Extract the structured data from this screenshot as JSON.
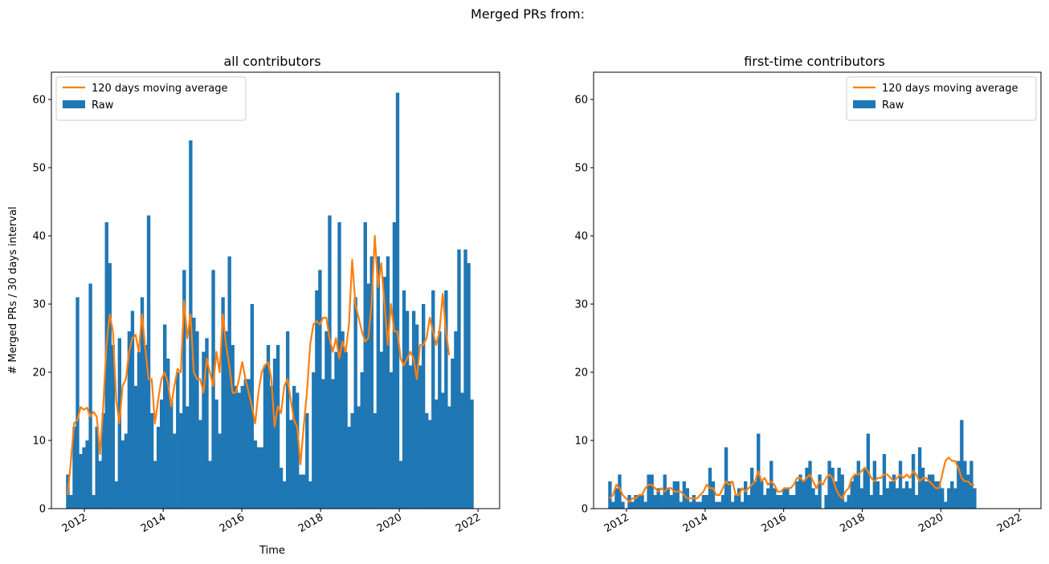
{
  "figure": {
    "suptitle": "Merged PRs from:"
  },
  "colors": {
    "raw": "#1f77b4",
    "avg": "#ff7f0e",
    "axis": "#000000"
  },
  "chart_data": [
    {
      "type": "bar",
      "title": "all contributors",
      "xlabel": "Time",
      "ylabel": "# Merged PRs / 30 days interval",
      "x_start": "2011-07-15",
      "bar_width_days": 30,
      "xlim": [
        "2011-03-01",
        "2022-07-20"
      ],
      "ylim": [
        0,
        64
      ],
      "x_ticks": [
        "2012",
        "2014",
        "2016",
        "2018",
        "2020",
        "2022"
      ],
      "y_ticks": [
        0,
        10,
        20,
        30,
        40,
        50,
        60
      ],
      "legend": {
        "position": "top-left",
        "entries": [
          "120 days moving average",
          "Raw"
        ]
      },
      "series": [
        {
          "name": "Raw",
          "kind": "bar",
          "values": [
            5,
            2,
            12,
            31,
            8,
            9,
            10,
            33,
            2,
            12,
            7,
            14,
            42,
            36,
            24,
            4,
            25,
            10,
            11,
            26,
            29,
            18,
            23,
            31,
            24,
            43,
            14,
            7,
            12,
            16,
            27,
            22,
            16,
            11,
            20,
            14,
            35,
            15,
            54,
            28,
            26,
            13,
            23,
            25,
            7,
            35,
            16,
            11,
            31,
            26,
            37,
            24,
            18,
            17,
            18,
            19,
            19,
            30,
            10,
            9,
            9,
            21,
            24,
            18,
            22,
            24,
            6,
            4,
            26,
            13,
            18,
            17,
            5,
            5,
            14,
            4,
            20,
            32,
            35,
            19,
            26,
            43,
            19,
            23,
            42,
            26,
            23,
            12,
            14,
            31,
            15,
            20,
            42,
            33,
            37,
            14,
            37,
            23,
            34,
            37,
            20,
            42,
            61,
            7,
            32,
            29,
            21,
            29,
            27,
            21,
            30,
            14,
            13,
            32,
            16,
            26,
            17,
            32,
            15,
            22,
            26,
            38,
            17,
            38,
            36,
            16
          ]
        },
        {
          "name": "120 days moving average",
          "kind": "line",
          "values": [
            2,
            7,
            12.5,
            13,
            14.9,
            14.5,
            14.8,
            13.5,
            14.2,
            13.5,
            8,
            15,
            24,
            28.5,
            26,
            16,
            12.5,
            18,
            19,
            23,
            25,
            25.5,
            23,
            28.5,
            23.5,
            19,
            19,
            12.5,
            16,
            19,
            20,
            18.5,
            15,
            18,
            20.5,
            20,
            30.5,
            25,
            28.5,
            20,
            19,
            19,
            17,
            22,
            20,
            18,
            23,
            20,
            28.5,
            24,
            21,
            17,
            17,
            19,
            21.5,
            19,
            17,
            15,
            12.5,
            17,
            20,
            21,
            21.5,
            19,
            12,
            15,
            14,
            18,
            19,
            16,
            13,
            12,
            6.5,
            12,
            17,
            24,
            27,
            27.5,
            27,
            28,
            28,
            25,
            23,
            25,
            22,
            24.5,
            23,
            27,
            36.5,
            30,
            28,
            26,
            24.5,
            25,
            30,
            40,
            32.5,
            36,
            30,
            24,
            30,
            26,
            26,
            22,
            21,
            22,
            23,
            22,
            19,
            24,
            24,
            25,
            28,
            26,
            24,
            26,
            31.5,
            26,
            22.5
          ]
        }
      ]
    },
    {
      "type": "bar",
      "title": "first-time contributors",
      "xlabel": "",
      "ylabel": "",
      "x_start": "2011-07-15",
      "bar_width_days": 30,
      "xlim": [
        "2011-03-01",
        "2022-07-20"
      ],
      "ylim": [
        0,
        64
      ],
      "x_ticks": [
        "2012",
        "2014",
        "2016",
        "2018",
        "2020",
        "2022"
      ],
      "y_ticks": [
        0,
        10,
        20,
        30,
        40,
        50,
        60
      ],
      "legend": {
        "position": "top-right",
        "entries": [
          "120 days moving average",
          "Raw"
        ]
      },
      "series": [
        {
          "name": "Raw",
          "kind": "bar",
          "values": [
            4,
            1,
            3,
            5,
            1,
            0,
            2,
            1,
            2,
            2,
            2,
            1,
            5,
            5,
            2,
            3,
            2,
            5,
            3,
            2,
            4,
            4,
            1,
            4,
            3,
            1,
            2,
            1,
            1,
            2,
            2,
            6,
            4,
            1,
            1,
            2,
            9,
            4,
            1,
            2,
            3,
            1,
            4,
            2,
            6,
            4,
            11,
            4,
            2,
            3,
            7,
            3,
            2,
            2,
            3,
            3,
            2,
            2,
            4,
            5,
            4,
            6,
            7,
            3,
            2,
            5,
            0,
            2,
            7,
            6,
            4,
            6,
            5,
            1,
            2,
            4,
            5,
            7,
            3,
            6,
            11,
            2,
            7,
            4,
            2,
            8,
            3,
            4,
            5,
            3,
            7,
            3,
            4,
            3,
            8,
            2,
            9,
            6,
            4,
            5,
            5,
            4,
            4,
            3,
            1,
            3,
            4,
            3,
            7,
            13,
            7,
            5,
            7,
            3
          ]
        },
        {
          "name": "120 days moving average",
          "kind": "line",
          "values": [
            1.5,
            2,
            3.5,
            3,
            2,
            1.5,
            1,
            1.5,
            1.5,
            2,
            2,
            3,
            3.5,
            3.5,
            3,
            2.5,
            3,
            2.5,
            3,
            3,
            2.5,
            2.5,
            2.5,
            2,
            1.5,
            1.5,
            1.5,
            1.5,
            2,
            2.5,
            3.5,
            3,
            3,
            2,
            2,
            3,
            4,
            3.5,
            4,
            2,
            2,
            3,
            2.5,
            3,
            3.5,
            4,
            5.5,
            4,
            4.5,
            3.5,
            4,
            3.5,
            2.5,
            2.5,
            3,
            3,
            3,
            3.5,
            4.5,
            4.5,
            4,
            4.5,
            5,
            4,
            3,
            4,
            3.5,
            4.5,
            5,
            4.5,
            3,
            2,
            1.5,
            2.5,
            3,
            4.5,
            5,
            5,
            5.5,
            6,
            5.5,
            4.5,
            4,
            4.5,
            4.5,
            5,
            5,
            4.5,
            4,
            4.5,
            5,
            4.5,
            5,
            4.5,
            5.5,
            5,
            4,
            4.5,
            4.5,
            4,
            3.5,
            3,
            3,
            5,
            7,
            7.5,
            7,
            7,
            6,
            4.5,
            4,
            4,
            3.5,
            3.5
          ]
        }
      ]
    }
  ]
}
